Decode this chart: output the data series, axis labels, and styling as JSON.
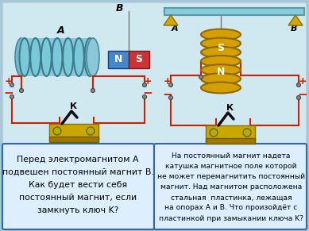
{
  "bg_color": "#a8c8d8",
  "panel_color": "#d0e8f0",
  "panel_edge": "#b0c8d8",
  "textbox_bg": "#ddeeff",
  "textbox_edge": "#3366aa",
  "wire_color": "#cc2200",
  "figsize": [
    3.89,
    2.91
  ],
  "dpi": 100,
  "left_text": [
    [
      "Перед электромагнитом ",
      "A",
      ""
    ],
    [
      "подвешен постоянный магнит ",
      "B",
      "."
    ],
    [
      "Как будет вести себя",
      "",
      ""
    ],
    [
      "постоянный магнит, если",
      "",
      ""
    ],
    [
      "замкнуть ключ ",
      "K",
      "?"
    ]
  ],
  "right_text": [
    "На постоянный магнит надета",
    "катушка магнитное поле которой",
    "не может перемагнитить постоянный",
    "магнит. Над магнитом расположена",
    "стальная  пластинка, лежащая",
    "на опорах A и B. Что произойдёт с",
    "пластинкой при замыкании ключа K?"
  ]
}
